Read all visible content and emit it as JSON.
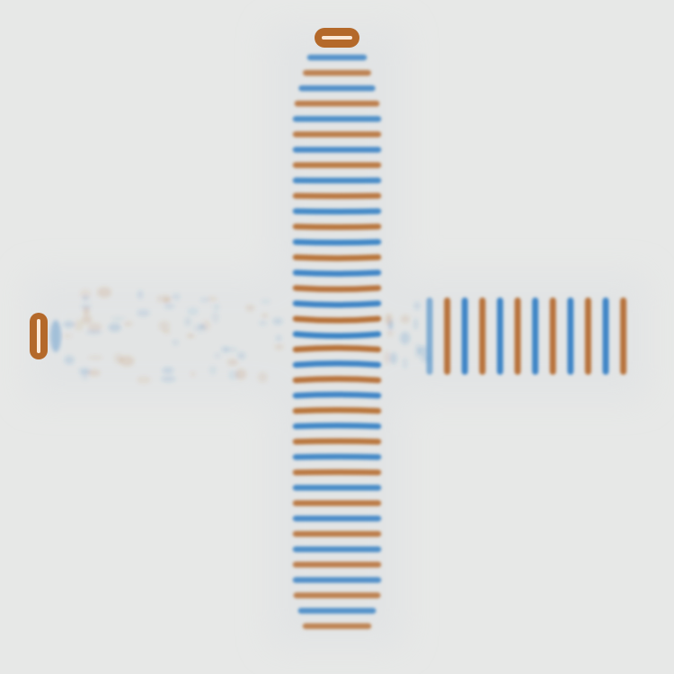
{
  "colors": {
    "background": "#e7e8e7",
    "positive": "#b4692a",
    "negative": "#2f7dc3",
    "faint": "#d9dde0"
  },
  "scene": {
    "type": "wave-field-cross",
    "sources": [
      "top-source",
      "left-source"
    ]
  }
}
